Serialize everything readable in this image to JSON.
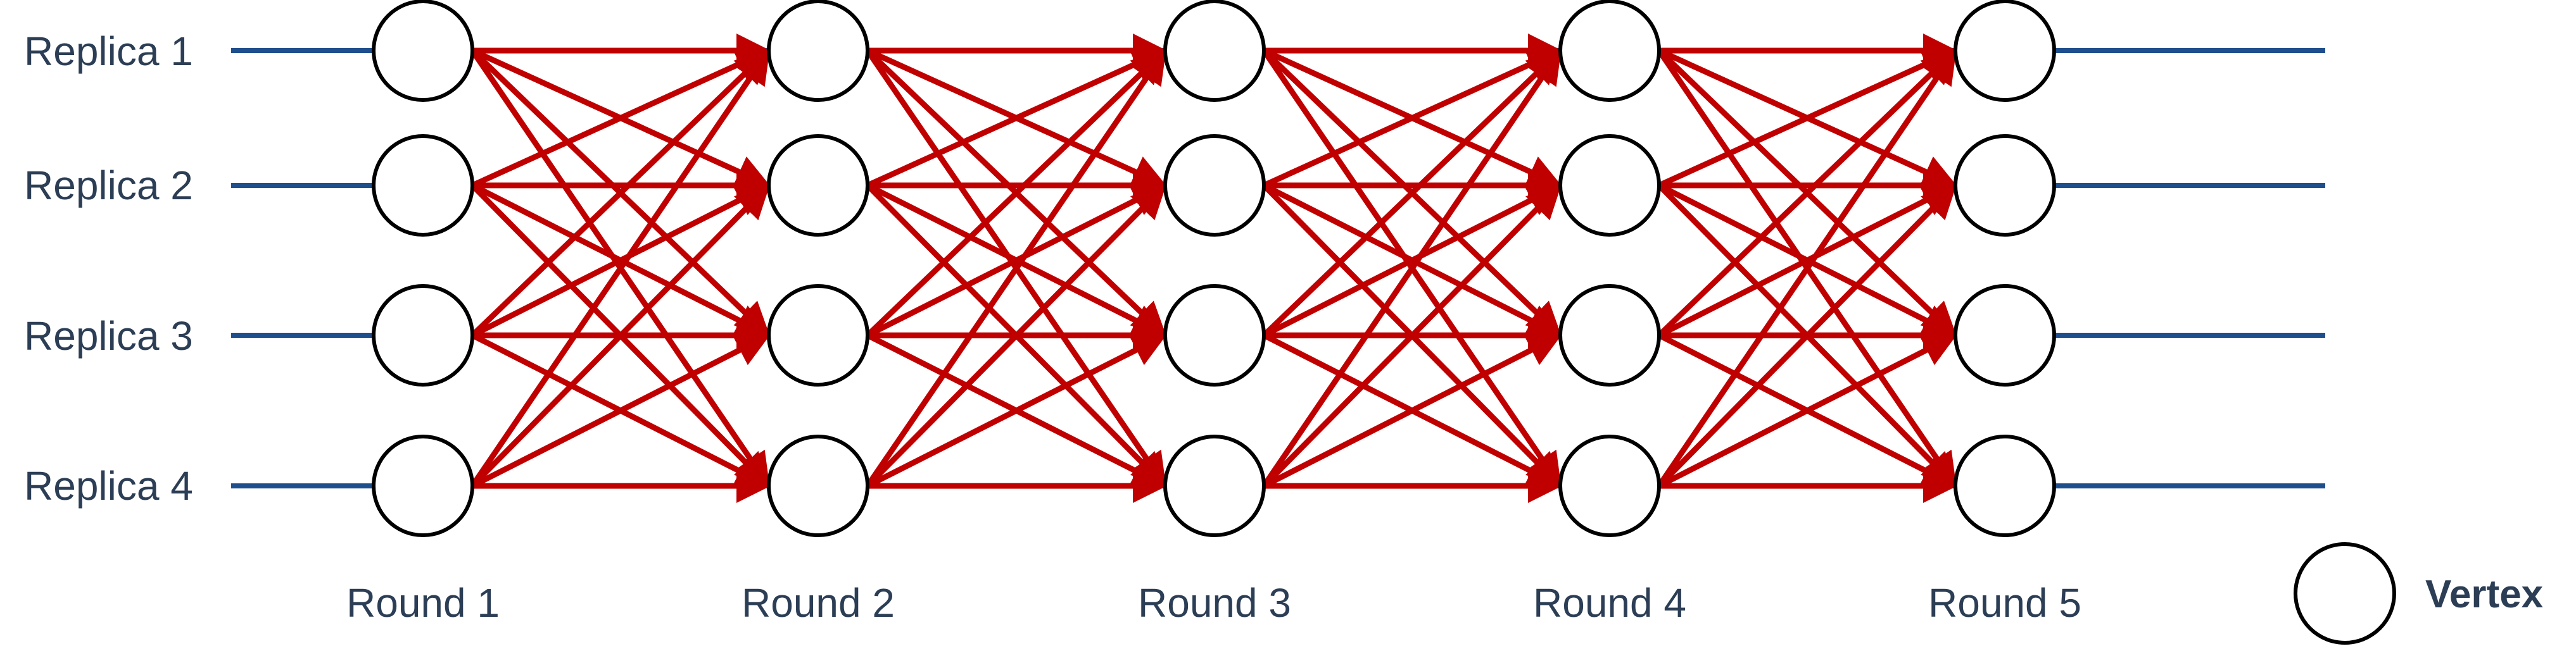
{
  "diagram": {
    "replicas": [
      "Replica 1",
      "Replica 2",
      "Replica 3",
      "Replica 4"
    ],
    "rounds": [
      "Round 1",
      "Round 2",
      "Round 3",
      "Round 4",
      "Round 5"
    ],
    "legend": {
      "vertex_label": "Vertex"
    },
    "colors": {
      "timeline": "#1f4e8c",
      "edge": "#c00000",
      "vertex_stroke": "#000000",
      "vertex_fill": "#ffffff",
      "text": "#2c3e55"
    },
    "edges": "all-to-all between consecutive rounds"
  }
}
